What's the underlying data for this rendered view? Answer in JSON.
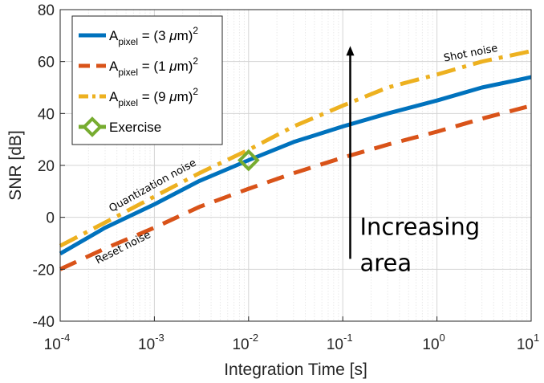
{
  "chart_data": {
    "type": "line",
    "xlabel": "Integration Time [s]",
    "ylabel": "SNR [dB]",
    "xscale": "log",
    "xlim": [
      0.0001,
      10
    ],
    "ylim": [
      -40,
      80
    ],
    "grid": true,
    "legend_position": "top-left",
    "x_ticks": [
      {
        "base": "10",
        "exp": "-4"
      },
      {
        "base": "10",
        "exp": "-3"
      },
      {
        "base": "10",
        "exp": "-2"
      },
      {
        "base": "10",
        "exp": "-1"
      },
      {
        "base": "10",
        "exp": "0"
      },
      {
        "base": "10",
        "exp": "1"
      }
    ],
    "y_ticks": [
      "-40",
      "-20",
      "0",
      "20",
      "40",
      "60",
      "80"
    ],
    "series": [
      {
        "name": {
          "pre": "A",
          "sub": "pixel",
          "mid": " = (3 ",
          "mu": "μ",
          "post": "m)",
          "sup": "2"
        },
        "color": "#0072BD",
        "style": "solid",
        "x": [
          0.0001,
          0.0003,
          0.001,
          0.003,
          0.01,
          0.03,
          0.1,
          0.3,
          1,
          3,
          10
        ],
        "y": [
          -14,
          -4,
          5,
          14,
          22,
          29,
          35,
          40,
          45,
          50,
          54
        ]
      },
      {
        "name": {
          "pre": "A",
          "sub": "pixel",
          "mid": " = (1 ",
          "mu": "μ",
          "post": "m)",
          "sup": "2"
        },
        "color": "#D95319",
        "style": "dashed",
        "x": [
          0.0001,
          0.0003,
          0.001,
          0.003,
          0.01,
          0.03,
          0.1,
          0.3,
          1,
          3,
          10
        ],
        "y": [
          -20,
          -12,
          -4,
          4,
          11,
          17,
          23,
          28,
          33,
          38,
          43
        ]
      },
      {
        "name": {
          "pre": "A",
          "sub": "pixel",
          "mid": " = (9 ",
          "mu": "μ",
          "post": "m)",
          "sup": "2"
        },
        "color": "#EDB120",
        "style": "dashdot",
        "x": [
          0.0001,
          0.0003,
          0.001,
          0.003,
          0.01,
          0.03,
          0.1,
          0.3,
          1,
          3,
          10
        ],
        "y": [
          -11,
          -2,
          8,
          17,
          26,
          35,
          43,
          50,
          55,
          60,
          64
        ]
      }
    ],
    "marker": {
      "name": "Exercise",
      "x": 0.01,
      "y": 22,
      "color": "#77AC30"
    },
    "annotations": [
      {
        "text": "Shot noise",
        "x": 1.2,
        "y": 60,
        "rotate": -11
      },
      {
        "text": "Quantization noise",
        "x": 0.00035,
        "y": 2,
        "rotate": -29
      },
      {
        "text": "Reset noise",
        "x": 0.00025,
        "y": -18,
        "rotate": -27
      }
    ],
    "arrow": {
      "x": 0.12,
      "y_from": -16,
      "y_to": 66
    },
    "arrow_text": [
      "Increasing",
      "area"
    ]
  }
}
